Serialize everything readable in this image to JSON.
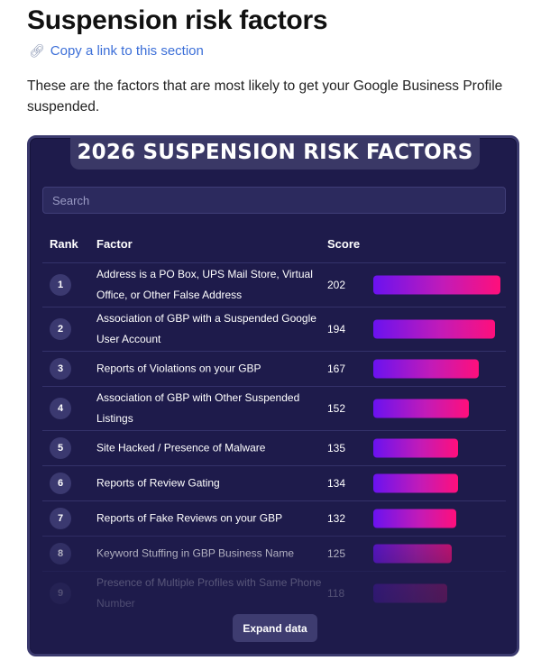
{
  "section": {
    "heading": "Suspension risk factors",
    "anchor_link": "Copy a link to this section",
    "intro": "These are the factors that are most likely to get your Google Business Profile suspended."
  },
  "widget": {
    "title": "2026 SUSPENSION RISK FACTORS",
    "search_placeholder": "Search",
    "columns": {
      "rank": "Rank",
      "factor": "Factor",
      "score": "Score"
    },
    "expand_label": "Expand data",
    "max_score": 202,
    "bar_colors": {
      "start": "#6a12f0",
      "end": "#ff0f7b"
    },
    "rows": [
      {
        "rank": "1",
        "factor": "Address is a PO Box, UPS Mail Store, Virtual Office, or Other False Address",
        "score": 202
      },
      {
        "rank": "2",
        "factor": "Association of GBP with a Suspended Google User Account",
        "score": 194
      },
      {
        "rank": "3",
        "factor": "Reports of Violations on your GBP",
        "score": 167
      },
      {
        "rank": "4",
        "factor": "Association of GBP with Other Suspended Listings",
        "score": 152
      },
      {
        "rank": "5",
        "factor": "Site Hacked / Presence of Malware",
        "score": 135
      },
      {
        "rank": "6",
        "factor": "Reports of Review Gating",
        "score": 134
      },
      {
        "rank": "7",
        "factor": "Reports of Fake Reviews on your GBP",
        "score": 132
      },
      {
        "rank": "8",
        "factor": "Keyword Stuffing in GBP Business Name",
        "score": 125
      },
      {
        "rank": "9",
        "factor": "Presence of Multiple Profiles with Same Phone Number",
        "score": 118
      }
    ]
  },
  "icons": {
    "anchor": "link-icon"
  }
}
